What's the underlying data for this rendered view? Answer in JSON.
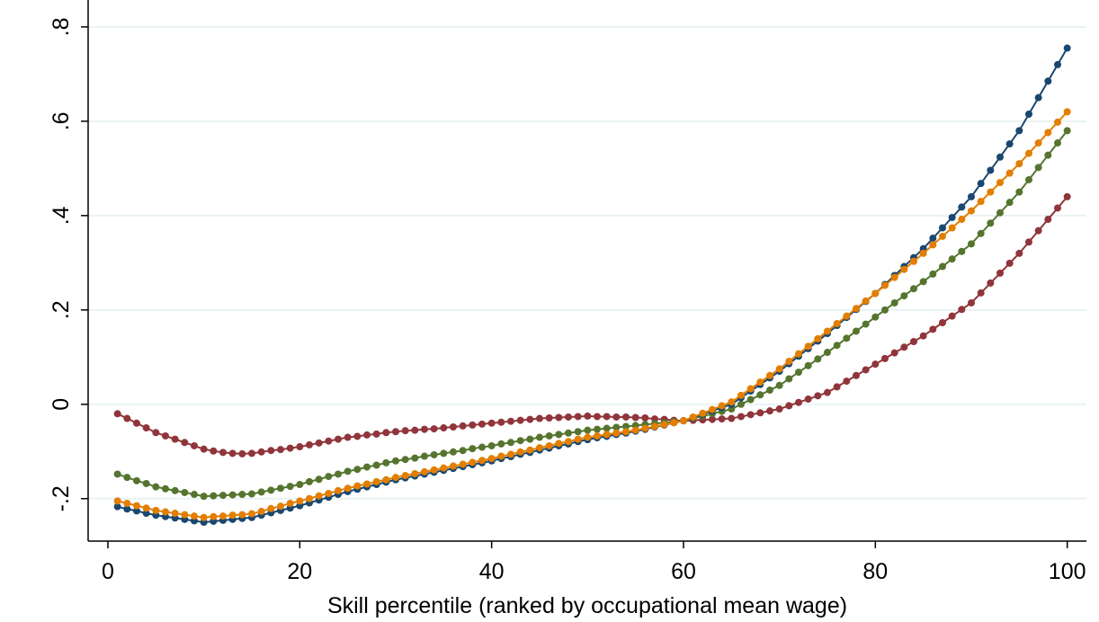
{
  "chart_data": {
    "type": "line",
    "x_label": "Skill percentile (ranked by occupational mean wage)",
    "x": [
      1,
      2,
      3,
      4,
      5,
      6,
      7,
      8,
      9,
      10,
      11,
      12,
      13,
      14,
      15,
      16,
      17,
      18,
      19,
      20,
      21,
      22,
      23,
      24,
      25,
      26,
      27,
      28,
      29,
      30,
      31,
      32,
      33,
      34,
      35,
      36,
      37,
      38,
      39,
      40,
      41,
      42,
      43,
      44,
      45,
      46,
      47,
      48,
      49,
      50,
      51,
      52,
      53,
      54,
      55,
      56,
      57,
      58,
      59,
      60,
      61,
      62,
      63,
      64,
      65,
      66,
      67,
      68,
      69,
      70,
      71,
      72,
      73,
      74,
      75,
      76,
      77,
      78,
      79,
      80,
      81,
      82,
      83,
      84,
      85,
      86,
      87,
      88,
      89,
      90,
      91,
      92,
      93,
      94,
      95,
      96,
      97,
      98,
      99,
      100
    ],
    "series": [
      {
        "color": "#90353b",
        "values": [
          -0.02,
          -0.03,
          -0.04,
          -0.05,
          -0.06,
          -0.067,
          -0.074,
          -0.081,
          -0.088,
          -0.095,
          -0.099,
          -0.102,
          -0.104,
          -0.105,
          -0.104,
          -0.101,
          -0.098,
          -0.096,
          -0.093,
          -0.09,
          -0.086,
          -0.082,
          -0.078,
          -0.074,
          -0.07,
          -0.068,
          -0.065,
          -0.063,
          -0.06,
          -0.058,
          -0.056,
          -0.055,
          -0.053,
          -0.052,
          -0.05,
          -0.048,
          -0.046,
          -0.044,
          -0.042,
          -0.04,
          -0.038,
          -0.036,
          -0.034,
          -0.032,
          -0.03,
          -0.029,
          -0.028,
          -0.027,
          -0.026,
          -0.025,
          -0.026,
          -0.026,
          -0.027,
          -0.027,
          -0.028,
          -0.029,
          -0.031,
          -0.032,
          -0.034,
          -0.035,
          -0.034,
          -0.033,
          -0.032,
          -0.031,
          -0.03,
          -0.026,
          -0.022,
          -0.018,
          -0.014,
          -0.01,
          -0.003,
          0.004,
          0.011,
          0.018,
          0.025,
          0.037,
          0.049,
          0.061,
          0.073,
          0.085,
          0.097,
          0.109,
          0.121,
          0.133,
          0.145,
          0.159,
          0.173,
          0.187,
          0.201,
          0.215,
          0.236,
          0.257,
          0.278,
          0.299,
          0.32,
          0.344,
          0.368,
          0.392,
          0.416,
          0.44
        ]
      },
      {
        "color": "#55752f",
        "values": [
          -0.148,
          -0.155,
          -0.162,
          -0.168,
          -0.175,
          -0.179,
          -0.183,
          -0.187,
          -0.191,
          -0.195,
          -0.194,
          -0.193,
          -0.192,
          -0.191,
          -0.19,
          -0.186,
          -0.182,
          -0.178,
          -0.174,
          -0.17,
          -0.164,
          -0.159,
          -0.153,
          -0.148,
          -0.142,
          -0.138,
          -0.133,
          -0.129,
          -0.124,
          -0.12,
          -0.117,
          -0.114,
          -0.11,
          -0.107,
          -0.104,
          -0.101,
          -0.098,
          -0.094,
          -0.091,
          -0.088,
          -0.084,
          -0.081,
          -0.077,
          -0.074,
          -0.07,
          -0.067,
          -0.064,
          -0.061,
          -0.058,
          -0.055,
          -0.053,
          -0.051,
          -0.049,
          -0.047,
          -0.045,
          -0.043,
          -0.041,
          -0.039,
          -0.037,
          -0.035,
          -0.03,
          -0.025,
          -0.02,
          -0.015,
          -0.01,
          0,
          0.01,
          0.02,
          0.03,
          0.04,
          0.054,
          0.068,
          0.082,
          0.096,
          0.11,
          0.125,
          0.14,
          0.155,
          0.17,
          0.185,
          0.2,
          0.215,
          0.23,
          0.245,
          0.26,
          0.276,
          0.292,
          0.308,
          0.324,
          0.34,
          0.362,
          0.384,
          0.406,
          0.428,
          0.45,
          0.476,
          0.502,
          0.528,
          0.554,
          0.58
        ]
      },
      {
        "color": "#1a476f",
        "values": [
          -0.217,
          -0.222,
          -0.226,
          -0.231,
          -0.235,
          -0.238,
          -0.241,
          -0.244,
          -0.247,
          -0.25,
          -0.248,
          -0.246,
          -0.244,
          -0.242,
          -0.24,
          -0.235,
          -0.23,
          -0.225,
          -0.22,
          -0.215,
          -0.209,
          -0.203,
          -0.197,
          -0.191,
          -0.185,
          -0.18,
          -0.175,
          -0.17,
          -0.165,
          -0.16,
          -0.156,
          -0.152,
          -0.148,
          -0.144,
          -0.14,
          -0.136,
          -0.132,
          -0.128,
          -0.124,
          -0.12,
          -0.115,
          -0.111,
          -0.106,
          -0.102,
          -0.097,
          -0.093,
          -0.088,
          -0.084,
          -0.079,
          -0.075,
          -0.071,
          -0.068,
          -0.064,
          -0.061,
          -0.057,
          -0.053,
          -0.048,
          -0.044,
          -0.039,
          -0.035,
          -0.028,
          -0.021,
          -0.014,
          -0.007,
          0,
          0.014,
          0.028,
          0.042,
          0.056,
          0.07,
          0.086,
          0.102,
          0.118,
          0.134,
          0.15,
          0.167,
          0.184,
          0.201,
          0.218,
          0.235,
          0.254,
          0.273,
          0.292,
          0.311,
          0.33,
          0.352,
          0.374,
          0.396,
          0.418,
          0.44,
          0.468,
          0.496,
          0.524,
          0.552,
          0.58,
          0.615,
          0.65,
          0.685,
          0.72,
          0.755
        ]
      },
      {
        "color": "#e37e00",
        "values": [
          -0.205,
          -0.21,
          -0.215,
          -0.22,
          -0.225,
          -0.228,
          -0.231,
          -0.234,
          -0.237,
          -0.24,
          -0.238,
          -0.237,
          -0.235,
          -0.234,
          -0.232,
          -0.227,
          -0.221,
          -0.216,
          -0.21,
          -0.205,
          -0.2,
          -0.194,
          -0.189,
          -0.183,
          -0.178,
          -0.173,
          -0.169,
          -0.164,
          -0.16,
          -0.155,
          -0.151,
          -0.147,
          -0.143,
          -0.139,
          -0.135,
          -0.131,
          -0.127,
          -0.123,
          -0.119,
          -0.115,
          -0.11,
          -0.106,
          -0.101,
          -0.097,
          -0.092,
          -0.088,
          -0.083,
          -0.079,
          -0.074,
          -0.07,
          -0.067,
          -0.064,
          -0.061,
          -0.058,
          -0.055,
          -0.051,
          -0.047,
          -0.043,
          -0.039,
          -0.035,
          -0.027,
          -0.019,
          -0.011,
          -0.003,
          0.005,
          0.019,
          0.033,
          0.047,
          0.061,
          0.075,
          0.091,
          0.107,
          0.123,
          0.139,
          0.155,
          0.171,
          0.187,
          0.203,
          0.219,
          0.235,
          0.252,
          0.269,
          0.286,
          0.303,
          0.32,
          0.338,
          0.356,
          0.374,
          0.392,
          0.41,
          0.43,
          0.45,
          0.47,
          0.49,
          0.51,
          0.532,
          0.554,
          0.576,
          0.598,
          0.62
        ]
      }
    ],
    "xlim": [
      -2.06,
      102
    ],
    "xticks": [
      0,
      20,
      40,
      60,
      80,
      100
    ],
    "ylim": [
      -0.29,
      0.857
    ],
    "yticks": [
      {
        "value": -0.2,
        "label": "-.2"
      },
      0,
      {
        "value": 0.2,
        "label": ".2"
      },
      {
        "value": 0.4,
        "label": ".4"
      },
      {
        "value": 0.6,
        "label": ".6"
      },
      {
        "value": 0.8,
        "label": ".8"
      }
    ],
    "grid": true
  }
}
